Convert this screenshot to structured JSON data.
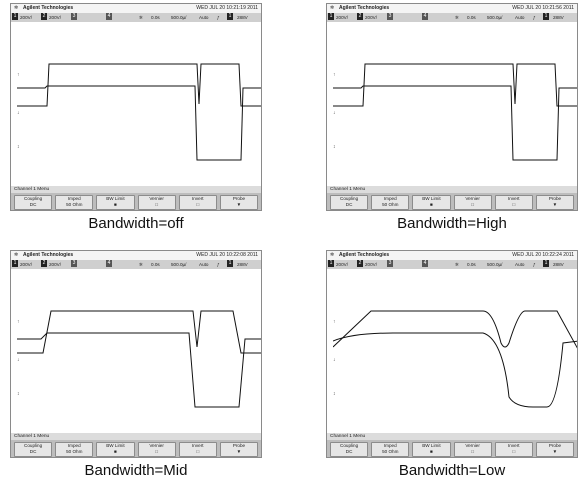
{
  "panels": [
    {
      "caption": "Bandwidth=off",
      "date": "WED JUL 20 10:21:19 2011",
      "ch1_mode": "off"
    },
    {
      "caption": "Bandwidth=High",
      "date": "WED JUL 20 10:21:56 2011",
      "ch1_mode": "high"
    },
    {
      "caption": "Bandwidth=Mid",
      "date": "WED JUL 20 10:22:08 2011",
      "ch1_mode": "mid"
    },
    {
      "caption": "Bandwidth=Low",
      "date": "WED JUL 20 10:22:24 2011",
      "ch1_mode": "low"
    }
  ],
  "scope": {
    "brand": "Agilent Technologies",
    "ch1_scale": "200V/",
    "ch2_scale": "200V/",
    "ch2_num": "2",
    "ch3_num": "3",
    "ch4_num": "4",
    "ch1_num": "1",
    "time_offset": "0.0s",
    "time_scale": "500.0µ/",
    "trigger_mode": "Auto",
    "trigger_level": "288V",
    "menu_title": "Channel 1  Menu",
    "softkeys": [
      {
        "l1": "Coupling",
        "l2": "DC"
      },
      {
        "l1": "Imped",
        "l2": "50 Ohm"
      },
      {
        "l1": "BW Limit",
        "l2": "■"
      },
      {
        "l1": "Vernier",
        "l2": "□"
      },
      {
        "l1": "Invert",
        "l2": "□"
      },
      {
        "l1": "Probe",
        "l2": "▼"
      }
    ]
  }
}
